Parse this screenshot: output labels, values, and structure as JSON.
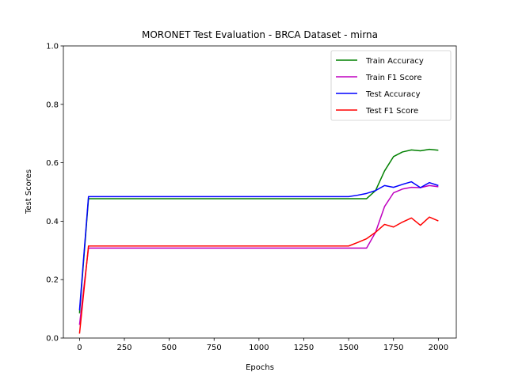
{
  "chart_data": {
    "type": "line",
    "title": "MORONET Test Evaluation - BRCA Dataset - mirna",
    "xlabel": "Epochs",
    "ylabel": "Test Scores",
    "xlim": [
      -90,
      2100
    ],
    "ylim": [
      0,
      1.0
    ],
    "xticks": [
      0,
      250,
      500,
      750,
      1000,
      1250,
      1500,
      1750,
      2000
    ],
    "yticks": [
      0.0,
      0.2,
      0.4,
      0.6,
      0.8,
      1.0
    ],
    "xtick_labels": [
      "0",
      "250",
      "500",
      "750",
      "1000",
      "1250",
      "1500",
      "1750",
      "2000"
    ],
    "ytick_labels": [
      "0.0",
      "0.2",
      "0.4",
      "0.6",
      "0.8",
      "1.0"
    ],
    "grid": false,
    "legend_position": "top-right",
    "x": [
      0,
      50,
      100,
      150,
      200,
      250,
      300,
      350,
      400,
      450,
      500,
      550,
      600,
      650,
      700,
      750,
      800,
      850,
      900,
      950,
      1000,
      1050,
      1100,
      1150,
      1200,
      1250,
      1300,
      1350,
      1400,
      1450,
      1500,
      1550,
      1600,
      1650,
      1700,
      1750,
      1800,
      1850,
      1900,
      1950,
      2000
    ],
    "series": [
      {
        "name": "Train Accuracy",
        "color": "#008000",
        "values": [
          0.085,
          0.477,
          0.477,
          0.477,
          0.477,
          0.477,
          0.477,
          0.477,
          0.477,
          0.477,
          0.477,
          0.477,
          0.477,
          0.477,
          0.477,
          0.477,
          0.477,
          0.477,
          0.477,
          0.477,
          0.477,
          0.477,
          0.477,
          0.477,
          0.477,
          0.477,
          0.477,
          0.477,
          0.477,
          0.477,
          0.477,
          0.477,
          0.477,
          0.505,
          0.572,
          0.621,
          0.637,
          0.644,
          0.641,
          0.646,
          0.643
        ]
      },
      {
        "name": "Train F1 Score",
        "color": "#bf00bf",
        "values": [
          0.045,
          0.308,
          0.308,
          0.308,
          0.308,
          0.308,
          0.308,
          0.308,
          0.308,
          0.308,
          0.308,
          0.308,
          0.308,
          0.308,
          0.308,
          0.308,
          0.308,
          0.308,
          0.308,
          0.308,
          0.308,
          0.308,
          0.308,
          0.308,
          0.308,
          0.308,
          0.308,
          0.308,
          0.308,
          0.308,
          0.308,
          0.308,
          0.308,
          0.362,
          0.45,
          0.497,
          0.51,
          0.516,
          0.515,
          0.522,
          0.518
        ]
      },
      {
        "name": "Test Accuracy",
        "color": "#0000ff",
        "values": [
          0.095,
          0.484,
          0.484,
          0.484,
          0.484,
          0.484,
          0.484,
          0.484,
          0.484,
          0.484,
          0.484,
          0.484,
          0.484,
          0.484,
          0.484,
          0.484,
          0.484,
          0.484,
          0.484,
          0.484,
          0.484,
          0.484,
          0.484,
          0.484,
          0.484,
          0.484,
          0.484,
          0.484,
          0.484,
          0.484,
          0.484,
          0.489,
          0.495,
          0.505,
          0.522,
          0.516,
          0.526,
          0.535,
          0.515,
          0.532,
          0.522
        ]
      },
      {
        "name": "Test F1 Score",
        "color": "#ff0000",
        "values": [
          0.015,
          0.315,
          0.315,
          0.315,
          0.315,
          0.315,
          0.315,
          0.315,
          0.315,
          0.315,
          0.315,
          0.315,
          0.315,
          0.315,
          0.315,
          0.315,
          0.315,
          0.315,
          0.315,
          0.315,
          0.315,
          0.315,
          0.315,
          0.315,
          0.315,
          0.315,
          0.315,
          0.315,
          0.315,
          0.315,
          0.315,
          0.327,
          0.34,
          0.362,
          0.389,
          0.38,
          0.397,
          0.411,
          0.386,
          0.414,
          0.401
        ]
      }
    ]
  }
}
